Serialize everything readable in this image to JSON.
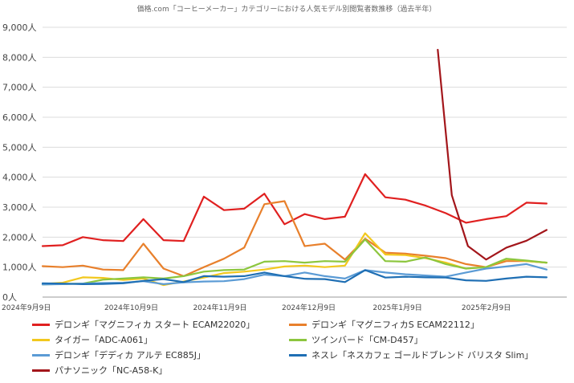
{
  "chart_data": {
    "type": "line",
    "title": "価格.com「コーヒーメーカー」カテゴリーにおける人気モデル別閲覧者数推移（過去半年）",
    "xlabel": "",
    "ylabel": "",
    "ylim": [
      0,
      9000
    ],
    "y_ticks": [
      0,
      1000,
      2000,
      3000,
      4000,
      5000,
      6000,
      7000,
      8000,
      9000
    ],
    "y_tick_labels": [
      "0人",
      "1,000人",
      "2,000人",
      "3,000人",
      "4,000人",
      "5,000人",
      "6,000人",
      "7,000人",
      "8,000人",
      "9,000人"
    ],
    "x_range": [
      0,
      26
    ],
    "x_ticks": [
      0,
      4.4,
      8.8,
      13.2,
      17.6,
      22
    ],
    "x_tick_labels": [
      "2024年9月9日",
      "2024年10月9日",
      "2024年11月9日",
      "2024年12月9日",
      "2025年1月9日",
      "2025年2月9日"
    ],
    "grid": true,
    "legend_position": "bottom",
    "series": [
      {
        "name": "デロンギ「マグニフィカ スタート ECAM22020」",
        "color": "#e02020",
        "x": [
          0,
          1,
          2,
          3,
          4,
          5,
          6,
          7,
          8,
          9,
          10,
          11,
          12,
          13,
          14,
          15,
          16,
          17,
          18,
          19,
          20,
          21,
          22,
          23,
          24,
          25,
          26
        ],
        "values": [
          1700,
          1730,
          2000,
          1900,
          1870,
          2600,
          1900,
          1870,
          3350,
          2900,
          2950,
          3450,
          2430,
          2770,
          2600,
          2680,
          4100,
          3330,
          3250,
          3050,
          2800,
          2480,
          2600,
          2700,
          3150,
          3120,
          null
        ]
      },
      {
        "name": "デロンギ「マグニフィカS ECAM22112」",
        "color": "#e8802c",
        "x": [
          0,
          1,
          2,
          3,
          4,
          5,
          6,
          7,
          8,
          9,
          10,
          11,
          12,
          13,
          14,
          15,
          16,
          17,
          18,
          19,
          20,
          21,
          22,
          23,
          24,
          25,
          26
        ],
        "values": [
          1030,
          1000,
          1050,
          920,
          900,
          1780,
          950,
          700,
          1000,
          1280,
          1650,
          3100,
          3200,
          1700,
          1780,
          1250,
          1950,
          1480,
          1450,
          1380,
          1300,
          1100,
          1000,
          1200,
          1200,
          1150,
          null
        ]
      },
      {
        "name": "タイガー「ADC-A061」",
        "color": "#f2c81e",
        "x": [
          0,
          1,
          2,
          3,
          4,
          5,
          6,
          7,
          8,
          9,
          10,
          11,
          12,
          13,
          14,
          15,
          16,
          17,
          18,
          19,
          20,
          21,
          22,
          23,
          24,
          25,
          26
        ],
        "values": [
          440,
          480,
          660,
          640,
          570,
          620,
          400,
          520,
          650,
          800,
          850,
          920,
          1020,
          1050,
          1000,
          1050,
          2130,
          1420,
          1400,
          1300,
          1150,
          950,
          1000,
          1270,
          1200,
          1150,
          null
        ]
      },
      {
        "name": "ツインバード「CM-D457」",
        "color": "#8cc63e",
        "x": [
          0,
          1,
          2,
          3,
          4,
          5,
          6,
          7,
          8,
          9,
          10,
          11,
          12,
          13,
          14,
          15,
          16,
          17,
          18,
          19,
          20,
          21,
          22,
          23,
          24,
          25,
          26
        ],
        "values": [
          420,
          440,
          450,
          580,
          620,
          660,
          620,
          700,
          850,
          900,
          920,
          1180,
          1200,
          1150,
          1200,
          1180,
          1920,
          1200,
          1180,
          1320,
          1100,
          950,
          1000,
          1280,
          1220,
          1150,
          null
        ]
      },
      {
        "name": "デロンギ「デディカ アルテ EC885J」",
        "color": "#5b9bd5",
        "x": [
          0,
          1,
          2,
          3,
          4,
          5,
          6,
          7,
          8,
          9,
          10,
          11,
          12,
          13,
          14,
          15,
          16,
          17,
          18,
          19,
          20,
          21,
          22,
          23,
          24,
          25,
          26
        ],
        "values": [
          420,
          430,
          450,
          470,
          480,
          530,
          430,
          490,
          520,
          530,
          600,
          750,
          700,
          820,
          700,
          620,
          900,
          820,
          760,
          720,
          680,
          820,
          950,
          1020,
          1100,
          920,
          null
        ]
      },
      {
        "name": "ネスレ「ネスカフェ ゴールドブレンド バリスタ Slim」",
        "color": "#1f6fb4",
        "x": [
          0,
          1,
          2,
          3,
          4,
          5,
          6,
          7,
          8,
          9,
          10,
          11,
          12,
          13,
          14,
          15,
          16,
          17,
          18,
          19,
          20,
          21,
          22,
          23,
          24,
          25,
          26
        ],
        "values": [
          460,
          450,
          430,
          440,
          460,
          540,
          600,
          500,
          700,
          680,
          700,
          820,
          700,
          610,
          600,
          500,
          900,
          650,
          680,
          660,
          650,
          560,
          540,
          620,
          680,
          660,
          null
        ]
      },
      {
        "name": "パナソニック「NC-A58-K」",
        "color": "#a3161b",
        "x": [
          19.6,
          20.3,
          21.1,
          22,
          23,
          24,
          25
        ],
        "values": [
          8250,
          3400,
          1700,
          1250,
          1650,
          1880,
          2240
        ]
      }
    ]
  }
}
